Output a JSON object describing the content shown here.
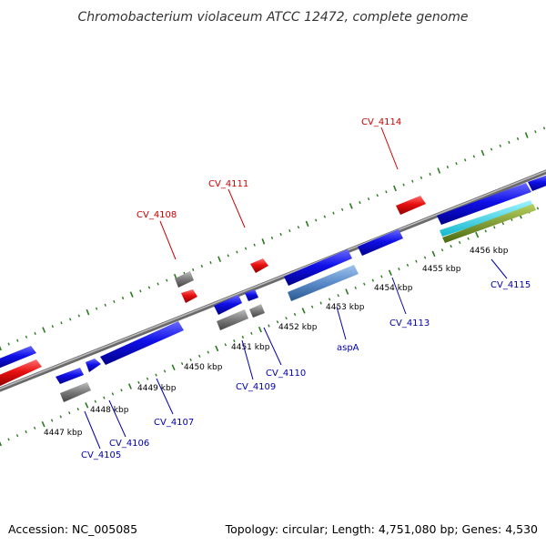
{
  "title": "Chromobacterium violaceum ATCC 12472, complete genome",
  "footer": {
    "accession": "Accession: NC_005085",
    "summary": "Topology: circular; Length: 4,751,080 bp; Genes: 4,530"
  },
  "colors": {
    "background": "#ffffff",
    "backbone": "#8a8a8a",
    "tick_major": "#2a7a1e",
    "tick_minor": "#2a7a1e",
    "forward_cds": "#1010e8",
    "reverse_cds": "#e81010",
    "rna_gene": "#808080",
    "label_forward": "#cc0000",
    "label_reverse": "#0000aa",
    "special_gene": "#5a8ac8",
    "cyan_track": "#20d0e0",
    "olive_track": "#7a9a20"
  },
  "kbp_labels": [
    "4447 kbp",
    "4448 kbp",
    "4449 kbp",
    "4450 kbp",
    "4451 kbp",
    "4452 kbp",
    "4453 kbp",
    "4454 kbp",
    "4455 kbp",
    "4456 kbp"
  ],
  "gene_labels_top": [
    "CV_4108",
    "CV_4111",
    "CV_4114"
  ],
  "gene_labels_bottom": [
    "CV_4105",
    "CV_4106",
    "CV_4107",
    "CV_4109",
    "CV_4110",
    "aspA",
    "CV_4113",
    "CV_4115"
  ]
}
